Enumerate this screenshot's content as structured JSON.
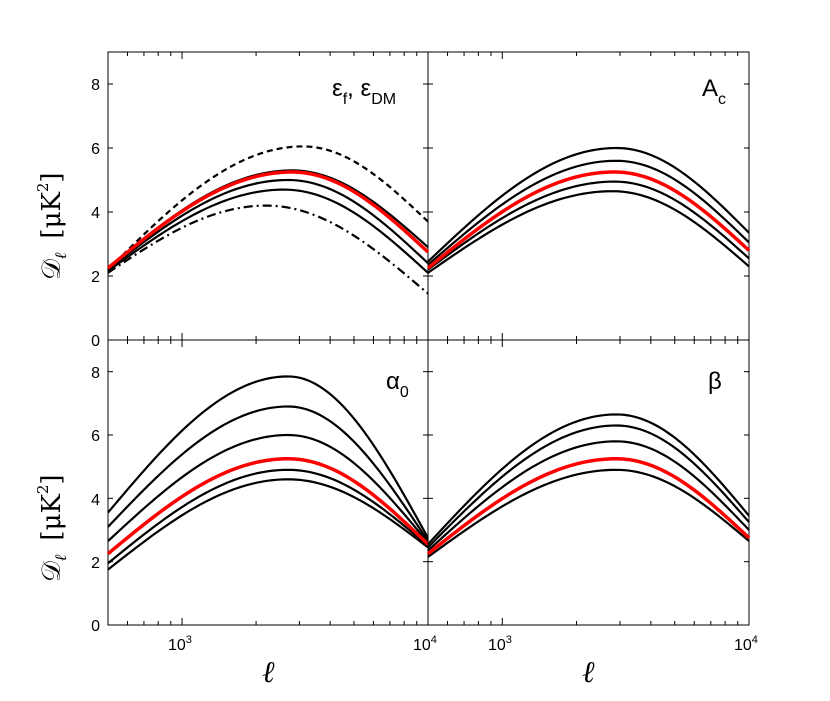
{
  "chart_data": [
    {
      "type": "line",
      "panel": "top-left",
      "label_main": "ε",
      "label_sub1": "f",
      "label_sep": ", ε",
      "label_sub2": "DM",
      "ylabel_main": "𝒟",
      "ylabel_sub": "ℓ",
      "ylabel_units": "[μK",
      "ylabel_exp": "2",
      "ylabel_close": "]",
      "xlim": [
        500,
        10000
      ],
      "ylim": [
        0,
        9
      ],
      "series": [
        {
          "name": "dashed",
          "style": "dashed",
          "color": "#000000",
          "start": 2.2,
          "peak": 6.05,
          "peak_at": 3100,
          "end": 3.7
        },
        {
          "name": "solid-1",
          "style": "solid",
          "color": "#000000",
          "start": 2.25,
          "peak": 5.3,
          "peak_at": 2800,
          "end": 2.9
        },
        {
          "name": "solid-2",
          "style": "solid",
          "color": "#000000",
          "start": 2.2,
          "peak": 5.0,
          "peak_at": 2700,
          "end": 2.4
        },
        {
          "name": "solid-3",
          "style": "solid",
          "color": "#000000",
          "start": 2.15,
          "peak": 4.7,
          "peak_at": 2600,
          "end": 2.1
        },
        {
          "name": "dashdot",
          "style": "dashdot",
          "color": "#000000",
          "start": 2.1,
          "peak": 4.2,
          "peak_at": 2200,
          "end": 1.45
        },
        {
          "name": "fiducial",
          "style": "solid",
          "color": "#ff0000",
          "start": 2.25,
          "peak": 5.25,
          "peak_at": 2800,
          "end": 2.75
        }
      ]
    },
    {
      "type": "line",
      "panel": "top-right",
      "label_main": "A",
      "label_sub1": "c",
      "xlim": [
        500,
        10000
      ],
      "ylim": [
        0,
        9
      ],
      "series": [
        {
          "name": "solid-1",
          "style": "solid",
          "color": "#000000",
          "start": 2.45,
          "peak": 6.0,
          "peak_at": 2900,
          "end": 3.35
        },
        {
          "name": "solid-2",
          "style": "solid",
          "color": "#000000",
          "start": 2.35,
          "peak": 5.6,
          "peak_at": 2900,
          "end": 3.05
        },
        {
          "name": "solid-3",
          "style": "solid",
          "color": "#000000",
          "start": 2.2,
          "peak": 4.95,
          "peak_at": 2850,
          "end": 2.55
        },
        {
          "name": "solid-4",
          "style": "solid",
          "color": "#000000",
          "start": 2.1,
          "peak": 4.65,
          "peak_at": 2800,
          "end": 2.3
        },
        {
          "name": "fiducial",
          "style": "solid",
          "color": "#ff0000",
          "start": 2.25,
          "peak": 5.25,
          "peak_at": 2850,
          "end": 2.8
        }
      ]
    },
    {
      "type": "line",
      "panel": "bottom-left",
      "label_main": "α",
      "label_sub1": "0",
      "ylabel_main": "𝒟",
      "ylabel_sub": "ℓ",
      "ylabel_units": "[μK",
      "ylabel_exp": "2",
      "ylabel_close": "]",
      "xlabel": "ℓ",
      "xlim": [
        500,
        10000
      ],
      "ylim": [
        0,
        9
      ],
      "xticks": [
        "10",
        "10"
      ],
      "xtick_exps": [
        "3",
        "4"
      ],
      "series": [
        {
          "name": "solid-1",
          "style": "solid",
          "color": "#000000",
          "start": 3.55,
          "peak": 7.85,
          "peak_at": 2700,
          "end": 2.75
        },
        {
          "name": "solid-2",
          "style": "solid",
          "color": "#000000",
          "start": 3.1,
          "peak": 6.9,
          "peak_at": 2700,
          "end": 2.65
        },
        {
          "name": "solid-3",
          "style": "solid",
          "color": "#000000",
          "start": 2.65,
          "peak": 6.0,
          "peak_at": 2700,
          "end": 2.6
        },
        {
          "name": "solid-4",
          "style": "solid",
          "color": "#000000",
          "start": 1.95,
          "peak": 4.9,
          "peak_at": 2700,
          "end": 2.5
        },
        {
          "name": "solid-5",
          "style": "solid",
          "color": "#000000",
          "start": 1.75,
          "peak": 4.6,
          "peak_at": 2700,
          "end": 2.45
        },
        {
          "name": "fiducial",
          "style": "solid",
          "color": "#ff0000",
          "start": 2.25,
          "peak": 5.25,
          "peak_at": 2700,
          "end": 2.55
        }
      ]
    },
    {
      "type": "line",
      "panel": "bottom-right",
      "label_main": "β",
      "xlabel": "ℓ",
      "xlim": [
        500,
        10000
      ],
      "ylim": [
        0,
        9
      ],
      "xticks": [
        "10",
        "10"
      ],
      "xtick_exps": [
        "3",
        "4"
      ],
      "series": [
        {
          "name": "solid-1",
          "style": "solid",
          "color": "#000000",
          "start": 2.55,
          "peak": 6.65,
          "peak_at": 2900,
          "end": 3.45
        },
        {
          "name": "solid-2",
          "style": "solid",
          "color": "#000000",
          "start": 2.45,
          "peak": 6.3,
          "peak_at": 2900,
          "end": 3.25
        },
        {
          "name": "solid-3",
          "style": "solid",
          "color": "#000000",
          "start": 2.35,
          "peak": 5.8,
          "peak_at": 2900,
          "end": 3.0
        },
        {
          "name": "solid-4",
          "style": "solid",
          "color": "#000000",
          "start": 2.15,
          "peak": 4.9,
          "peak_at": 2900,
          "end": 2.65
        },
        {
          "name": "fiducial",
          "style": "solid",
          "color": "#ff0000",
          "start": 2.25,
          "peak": 5.25,
          "peak_at": 2900,
          "end": 2.75
        }
      ]
    }
  ],
  "yticks": [
    "0",
    "2",
    "4",
    "6",
    "8"
  ],
  "ytick_values": [
    0,
    2,
    4,
    6,
    8
  ]
}
